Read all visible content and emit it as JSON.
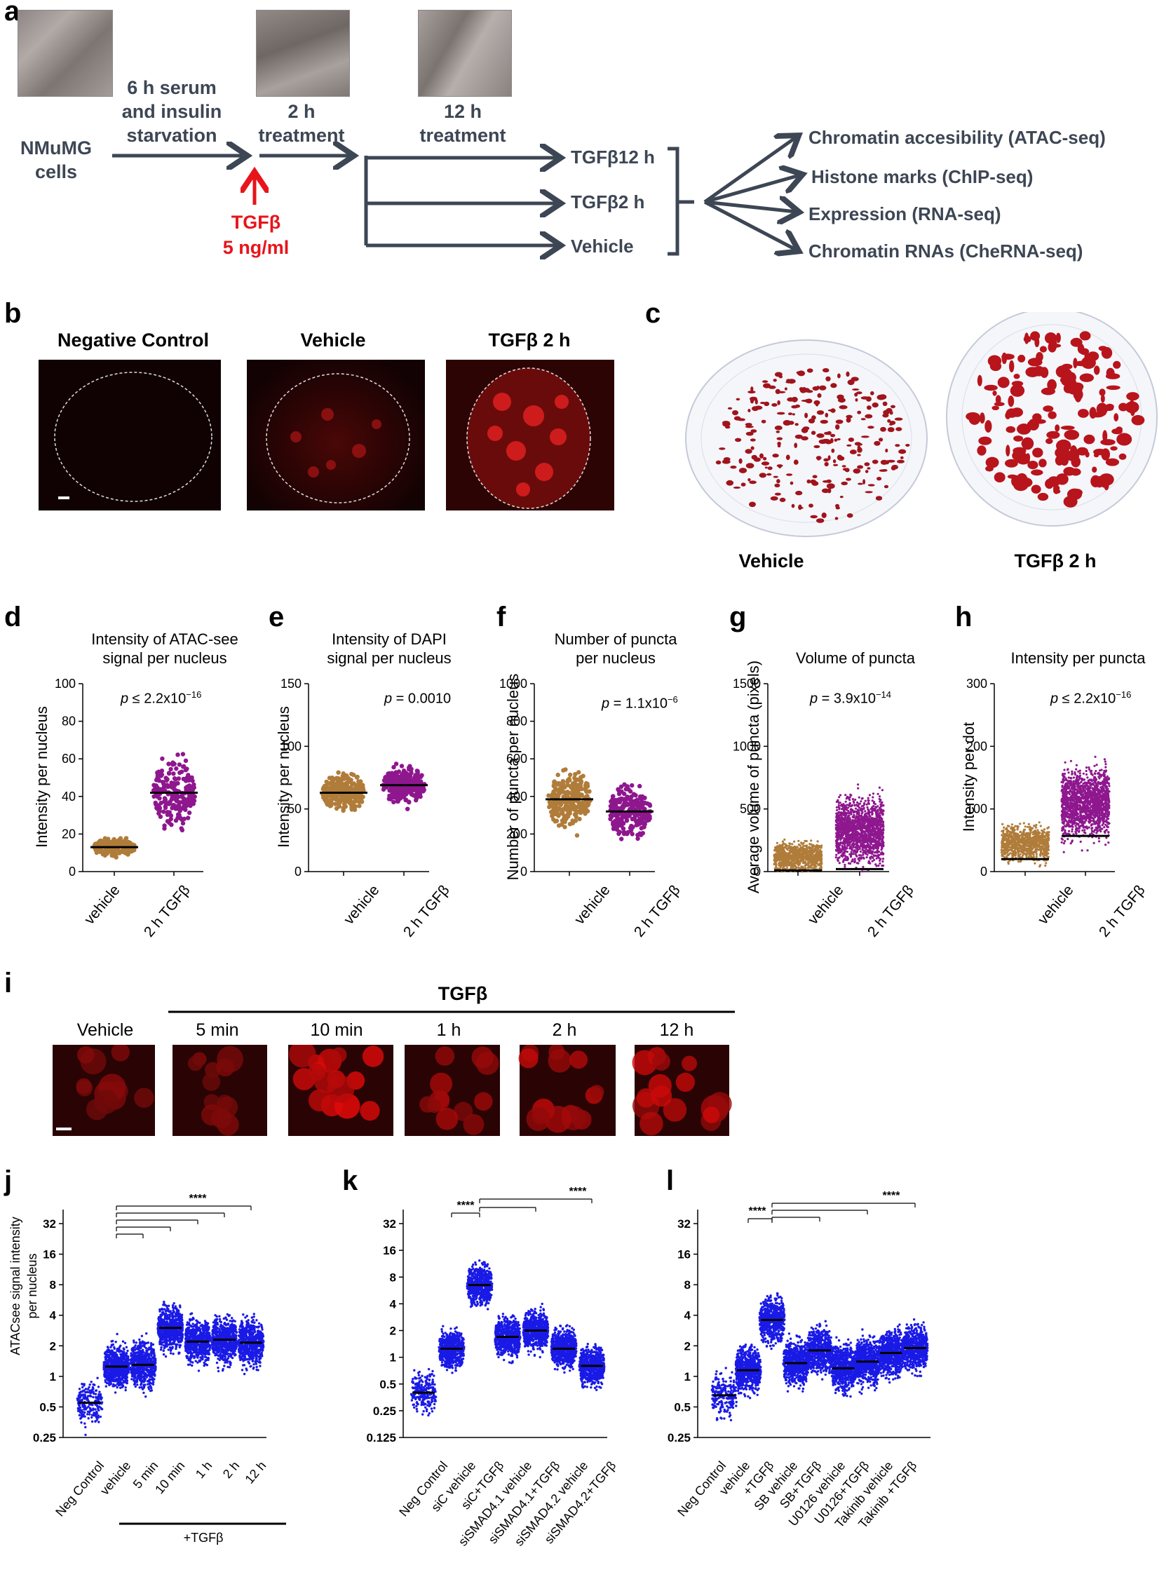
{
  "panels": {
    "a": "a",
    "b": "b",
    "c": "c",
    "d": "d",
    "e": "e",
    "f": "f",
    "g": "g",
    "h": "h",
    "i": "i",
    "j": "j",
    "k": "k",
    "l": "l"
  },
  "panel_a": {
    "start": "NMuMG\ncells",
    "step1": "6 h serum\nand insulin\nstarvation",
    "step2": "2 h\ntreatment",
    "step3": "12 h\ntreatment",
    "tgfb": "TGFβ",
    "dose": "5 ng/ml",
    "branches": [
      "TGFβ12 h",
      "TGFβ2 h",
      "Vehicle"
    ],
    "outputs": [
      "Chromatin accesibility (ATAC-seq)",
      "Histone marks (ChIP-seq)",
      "Expression (RNA-seq)",
      "Chromatin RNAs (CheRNA-seq)"
    ],
    "arrow_color": "#3d4654"
  },
  "panel_b": {
    "titles": [
      "Negative Control",
      "Vehicle",
      "TGFβ 2 h"
    ]
  },
  "panel_c": {
    "labels": [
      "Vehicle",
      "TGFβ 2 h"
    ]
  },
  "scatter_colors": {
    "vehicle": "#b07c3a",
    "tgfb": "#8e178e",
    "blue": "#1a1ae6"
  },
  "chart_data": [
    {
      "panel": "d",
      "type": "scatter",
      "title": "Intensity of ATAC-see\nsignal per nucleus",
      "ylabel": "Intensity per nucleus",
      "ylim": [
        0,
        100
      ],
      "yticks": [
        "0",
        "20",
        "40",
        "60",
        "80",
        "100"
      ],
      "categories": [
        "vehicle",
        "2 h TGFβ"
      ],
      "medians": [
        13,
        42
      ],
      "p_prefix": "p",
      "p_value": " ≤ 2.2x10",
      "p_exp": "−16"
    },
    {
      "panel": "e",
      "type": "scatter",
      "title": "Intensity of DAPI\nsignal per nucleus",
      "ylabel": "Intensity per nucleus",
      "ylim": [
        0,
        150
      ],
      "yticks": [
        "0",
        "50",
        "100",
        "150"
      ],
      "categories": [
        "vehicle",
        "2 h TGFβ"
      ],
      "medians": [
        63,
        69
      ],
      "p_prefix": "p",
      "p_value": " = 0.0010",
      "p_exp": ""
    },
    {
      "panel": "f",
      "type": "scatter",
      "title": "Number of puncta\nper nucleus",
      "ylabel": "Number of puncta per nucleus",
      "ylim": [
        0,
        1000
      ],
      "yticks": [
        "0",
        "200",
        "400",
        "600",
        "800",
        "1000"
      ],
      "categories": [
        "vehicle",
        "2 h TGFβ"
      ],
      "medians": [
        385,
        320
      ],
      "p_prefix": "p",
      "p_value": " = 1.1x10",
      "p_exp": "−6"
    },
    {
      "panel": "g",
      "type": "scatter",
      "title": "Volume of puncta",
      "ylabel": "Average volume of puncta (pixels)",
      "ylim": [
        0,
        1500
      ],
      "yticks": [
        "0",
        "500",
        "1000",
        "1500"
      ],
      "categories": [
        "vehicle",
        "2 h TGFβ"
      ],
      "medians": [
        10,
        20
      ],
      "p_prefix": "p",
      "p_value": " = 3.9x10",
      "p_exp": "−14"
    },
    {
      "panel": "h",
      "type": "scatter",
      "title": "Intensity per puncta",
      "ylabel": "Intensity per dot",
      "ylim": [
        0,
        300
      ],
      "yticks": [
        "0",
        "100",
        "200",
        "300"
      ],
      "categories": [
        "vehicle",
        "2 h TGFβ"
      ],
      "medians": [
        20,
        57
      ],
      "p_prefix": "p",
      "p_value": " ≤ 2.2x10",
      "p_exp": "−16"
    },
    {
      "panel": "j",
      "type": "scatter",
      "scale": "log2",
      "ylabel": "ATACsee signal intensity\nper nucleus",
      "ylim": [
        0.25,
        32
      ],
      "yticks": [
        "0.25",
        "0.5",
        "1",
        "2",
        "4",
        "8",
        "16",
        "32"
      ],
      "categories": [
        "Neg Control",
        "vehicle",
        "5 min",
        "10 min",
        "1 h",
        "2 h",
        "12 h"
      ],
      "medians": [
        0.55,
        1.25,
        1.3,
        3.0,
        2.2,
        2.3,
        2.15
      ],
      "significance": "****",
      "group_label": "+TGFβ"
    },
    {
      "panel": "k",
      "type": "scatter",
      "scale": "log2",
      "ylim": [
        0.125,
        32
      ],
      "yticks": [
        "0.125",
        "0.25",
        "0.5",
        "1",
        "2",
        "4",
        "8",
        "16",
        "32"
      ],
      "categories": [
        "Neg Control",
        "siC vehicle",
        "siC+TGFβ",
        "siSMAD4.1 vehicle",
        "siSMAD4.1+TGFβ",
        "siSMAD4.2 vehicle",
        "siSMAD4.2+TGFβ"
      ],
      "medians": [
        0.4,
        1.25,
        6.5,
        1.7,
        2.0,
        1.25,
        0.8
      ],
      "significance": "****"
    },
    {
      "panel": "l",
      "type": "scatter",
      "scale": "log2",
      "ylim": [
        0.25,
        32
      ],
      "yticks": [
        "0.25",
        "0.5",
        "1",
        "2",
        "4",
        "8",
        "16",
        "32"
      ],
      "categories": [
        "Neg Control",
        "vehicle",
        "+TGFβ",
        "SB vehicle",
        "SB+TGFβ",
        "U0126 vehicle",
        "U0126+TGFβ",
        "Takinib vehicle",
        "Takinib +TGFβ"
      ],
      "medians": [
        0.65,
        1.15,
        3.6,
        1.35,
        1.8,
        1.2,
        1.4,
        1.7,
        1.9
      ],
      "significance": "****"
    }
  ],
  "panel_i": {
    "header": "TGFβ",
    "labels": [
      "Vehicle",
      "5 min",
      "10 min",
      "1 h",
      "2 h",
      "12 h"
    ]
  }
}
